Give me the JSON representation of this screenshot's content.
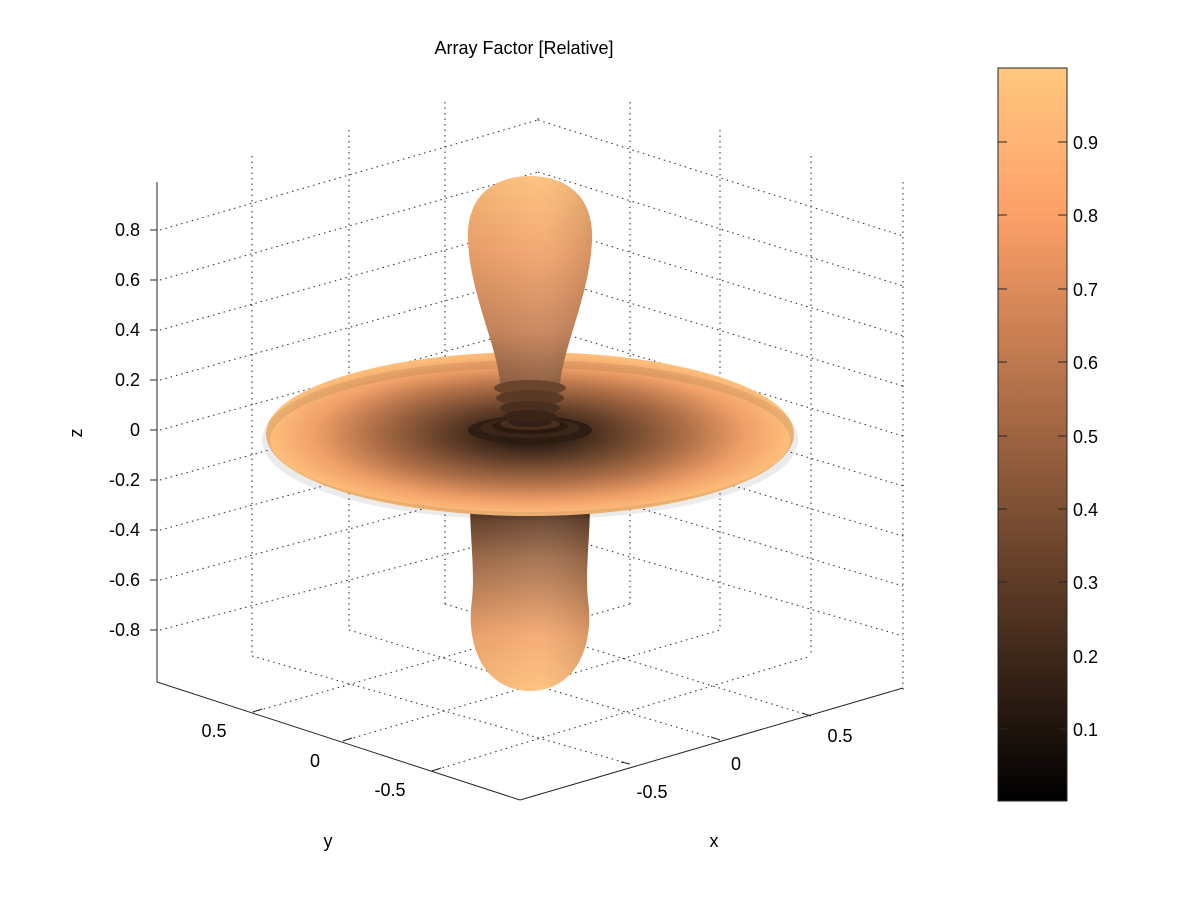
{
  "chart_data": {
    "type": "surface",
    "title": "Array Factor [Relative]",
    "xlabel": "x",
    "ylabel": "y",
    "zlabel": "z",
    "x_ticks": [
      "-0.5",
      "0",
      "0.5"
    ],
    "y_ticks": [
      "0.5",
      "0",
      "-0.5"
    ],
    "z_ticks": [
      "0.8",
      "0.6",
      "0.4",
      "0.2",
      "0",
      "-0.2",
      "-0.4",
      "-0.6",
      "-0.8"
    ],
    "xlim": [
      -1,
      1
    ],
    "ylim": [
      -1,
      1
    ],
    "zlim": [
      -1,
      1
    ],
    "grid": true,
    "colormap": "copper",
    "colorbar": {
      "range": [
        0,
        1
      ],
      "ticks": [
        "0.9",
        "0.8",
        "0.7",
        "0.6",
        "0.5",
        "0.4",
        "0.3",
        "0.2",
        "0.1"
      ],
      "color_low": "#000000",
      "color_high": "#ffc77f"
    },
    "pattern": {
      "main_beam_relative": 1.0,
      "endfire_lobe_z": 0.95,
      "endfire_lobe_negative_z": -0.95,
      "beam_direction_z": 0
    }
  }
}
